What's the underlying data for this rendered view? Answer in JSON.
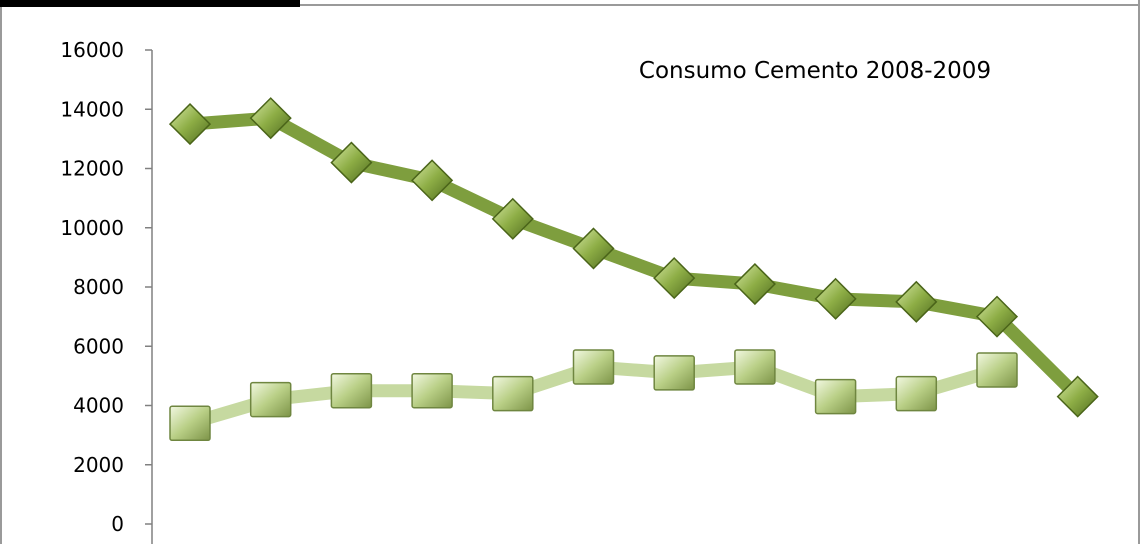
{
  "chart_data": {
    "type": "line",
    "title": "Consumo Cemento 2008-2009",
    "xlabel": "",
    "ylabel": "",
    "ylim": [
      0,
      16000
    ],
    "yticks": [
      0,
      2000,
      4000,
      6000,
      8000,
      10000,
      12000,
      14000,
      16000
    ],
    "grid": false,
    "legend": "none",
    "series": [
      {
        "marker": "diamond",
        "color": "#7e9e3e",
        "values": [
          13500,
          13700,
          12200,
          11600,
          10300,
          9300,
          8300,
          8100,
          7600,
          7500,
          7000,
          4300
        ]
      },
      {
        "marker": "square",
        "color": "#c6d9a0",
        "values": [
          3400,
          4200,
          4500,
          4500,
          4400,
          5300,
          5100,
          5300,
          4300,
          4400,
          5200,
          null
        ]
      }
    ]
  }
}
